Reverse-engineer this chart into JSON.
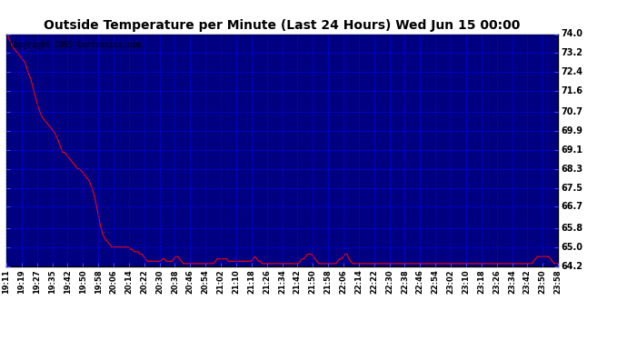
{
  "title": "Outside Temperature per Minute (Last 24 Hours) Wed Jun 15 00:00",
  "copyright": "Copyright 2005 Curtronics.com",
  "background_color": "#ffffff",
  "plot_bg_color": "#000080",
  "line_color": "#ff0000",
  "grid_color": "#0000ff",
  "yticks": [
    64.2,
    65.0,
    65.8,
    66.7,
    67.5,
    68.3,
    69.1,
    69.9,
    70.7,
    71.6,
    72.4,
    73.2,
    74.0
  ],
  "ymin": 64.2,
  "ymax": 74.0,
  "xtick_labels": [
    "19:11",
    "19:19",
    "19:27",
    "19:35",
    "19:42",
    "19:50",
    "19:58",
    "20:06",
    "20:14",
    "20:22",
    "20:30",
    "20:38",
    "20:46",
    "20:54",
    "21:02",
    "21:10",
    "21:18",
    "21:26",
    "21:34",
    "21:42",
    "21:50",
    "21:58",
    "22:06",
    "22:14",
    "22:22",
    "22:30",
    "22:38",
    "22:46",
    "22:54",
    "23:02",
    "23:10",
    "23:18",
    "23:26",
    "23:34",
    "23:42",
    "23:50",
    "23:58"
  ],
  "data_y": [
    73.9,
    73.9,
    73.7,
    73.5,
    73.4,
    73.3,
    73.2,
    73.1,
    73.0,
    72.9,
    72.8,
    72.5,
    72.3,
    72.1,
    71.8,
    71.5,
    71.2,
    70.9,
    70.7,
    70.5,
    70.4,
    70.3,
    70.2,
    70.1,
    70.0,
    69.9,
    69.8,
    69.6,
    69.4,
    69.2,
    69.0,
    69.0,
    68.9,
    68.8,
    68.7,
    68.6,
    68.5,
    68.4,
    68.3,
    68.3,
    68.2,
    68.1,
    68.0,
    67.9,
    67.8,
    67.6,
    67.4,
    67.1,
    66.7,
    66.3,
    65.9,
    65.6,
    65.4,
    65.3,
    65.2,
    65.1,
    65.0,
    65.0,
    65.0,
    65.0,
    65.0,
    65.0,
    65.0,
    65.0,
    65.0,
    65.0,
    64.9,
    64.9,
    64.8,
    64.8,
    64.8,
    64.7,
    64.7,
    64.6,
    64.5,
    64.4,
    64.4,
    64.4,
    64.4,
    64.4,
    64.4,
    64.4,
    64.4,
    64.5,
    64.5,
    64.4,
    64.4,
    64.4,
    64.4,
    64.5,
    64.6,
    64.6,
    64.5,
    64.4,
    64.3,
    64.3,
    64.3,
    64.3,
    64.3,
    64.3,
    64.3,
    64.3,
    64.3,
    64.3,
    64.3,
    64.3,
    64.3,
    64.3,
    64.3,
    64.3,
    64.3,
    64.4,
    64.5,
    64.5,
    64.5,
    64.5,
    64.5,
    64.5,
    64.4,
    64.4,
    64.4,
    64.4,
    64.4,
    64.4,
    64.4,
    64.4,
    64.4,
    64.4,
    64.4,
    64.4,
    64.4,
    64.5,
    64.6,
    64.5,
    64.4,
    64.4,
    64.3,
    64.3,
    64.3,
    64.3,
    64.3,
    64.3,
    64.3,
    64.3,
    64.3,
    64.3,
    64.3,
    64.3,
    64.3,
    64.3,
    64.3,
    64.3,
    64.3,
    64.3,
    64.3,
    64.3,
    64.4,
    64.5,
    64.5,
    64.6,
    64.7,
    64.7,
    64.7,
    64.6,
    64.5,
    64.4,
    64.3,
    64.3,
    64.3,
    64.3,
    64.3,
    64.3,
    64.3,
    64.3,
    64.3,
    64.3,
    64.4,
    64.5,
    64.5,
    64.6,
    64.7,
    64.7,
    64.5,
    64.4,
    64.3,
    64.3,
    64.3,
    64.3,
    64.3,
    64.3,
    64.3,
    64.3,
    64.3,
    64.3,
    64.3,
    64.3,
    64.3,
    64.3,
    64.3,
    64.3,
    64.3,
    64.3,
    64.3,
    64.3,
    64.3,
    64.3,
    64.3,
    64.3,
    64.3,
    64.3,
    64.3,
    64.3,
    64.3,
    64.3,
    64.3,
    64.3,
    64.3,
    64.3,
    64.3,
    64.3,
    64.3,
    64.3,
    64.3,
    64.3,
    64.3,
    64.3,
    64.3,
    64.3,
    64.3,
    64.3,
    64.3,
    64.3,
    64.3,
    64.3,
    64.3,
    64.3,
    64.3,
    64.3,
    64.3,
    64.3,
    64.3,
    64.3,
    64.3,
    64.3,
    64.3,
    64.3,
    64.3,
    64.3,
    64.3,
    64.3,
    64.3,
    64.3,
    64.3,
    64.3,
    64.3,
    64.3,
    64.3,
    64.3,
    64.3,
    64.3,
    64.3,
    64.3,
    64.3,
    64.3,
    64.3,
    64.3,
    64.3,
    64.3,
    64.3,
    64.3,
    64.3,
    64.3,
    64.3,
    64.3,
    64.3,
    64.3,
    64.3,
    64.3,
    64.3,
    64.3,
    64.4,
    64.5,
    64.6,
    64.6,
    64.6,
    64.6,
    64.6,
    64.6,
    64.6,
    64.5,
    64.4,
    64.3,
    64.3,
    64.3
  ],
  "title_fontsize": 10,
  "ylabel_fontsize": 7,
  "xlabel_fontsize": 6,
  "copyright_fontsize": 6
}
